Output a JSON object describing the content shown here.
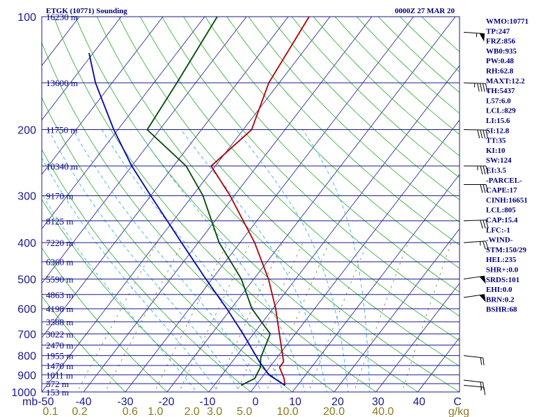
{
  "header": {
    "station": "ETGK (10771) Sounding",
    "time": "0000Z 27 MAR 20"
  },
  "colors": {
    "isobar": "#1a1a8c",
    "isotherm": "#1a1a8c",
    "dry_adiabat": "#2aa52a",
    "moist_adiabat": "#3bb0e0",
    "mixing_ratio": "#7a7a4a",
    "temperature": "#b00000",
    "dewpoint": "#004a00",
    "parcel": "#0000b0",
    "index_text": "#00007a",
    "wind_barb": "#000000",
    "mr_label": "#8a7a20"
  },
  "axis": {
    "pressure_ticks": [
      "100",
      "200",
      "300",
      "400",
      "500",
      "600",
      "700",
      "800",
      "900",
      "1000"
    ],
    "temperature_ticks": [
      "mb-50",
      "-40",
      "-30",
      "-20",
      "-10",
      "0",
      "10",
      "20",
      "30",
      "40",
      "C"
    ],
    "mixing_ratio_ticks": [
      "0.1",
      "0.2",
      "0.6",
      "1.0",
      "2.0",
      "3.0",
      "5.0",
      "10.0",
      "20.0",
      "40.0",
      "g/kg"
    ]
  },
  "height_labels": [
    {
      "p": 100,
      "label": "16230 m"
    },
    {
      "p": 150,
      "label": "13600 m"
    },
    {
      "p": 200,
      "label": "11750 m"
    },
    {
      "p": 250,
      "label": "10340 m"
    },
    {
      "p": 300,
      "label": "9170 m"
    },
    {
      "p": 350,
      "label": "8125 m"
    },
    {
      "p": 400,
      "label": "7220 m"
    },
    {
      "p": 450,
      "label": "6360 m"
    },
    {
      "p": 500,
      "label": "5590 m"
    },
    {
      "p": 550,
      "label": "4863 m"
    },
    {
      "p": 600,
      "label": "4198 m"
    },
    {
      "p": 650,
      "label": "3588 m"
    },
    {
      "p": 700,
      "label": "3022 m"
    },
    {
      "p": 750,
      "label": "2470 m"
    },
    {
      "p": 800,
      "label": "1955 m"
    },
    {
      "p": 850,
      "label": "1470 m"
    },
    {
      "p": 900,
      "label": "1011 m"
    },
    {
      "p": 950,
      "label": "572 m"
    },
    {
      "p": 1000,
      "label": "153 m"
    }
  ],
  "indices": [
    "WMO:10771",
    "TP:247",
    "FRZ:856",
    "WB0:935",
    "PW:0.48",
    "RH:62.8",
    "MAXT:12.2",
    "TH:5437",
    "L57:6.0",
    "LCL:829",
    "LI:15.6",
    "SI:12.8",
    "TT:35",
    "KI:10",
    "SW:124",
    "EI:3.5",
    "-PARCEL-",
    "CAPE:17",
    "CINH:16651",
    "LCL:805",
    "CAP:15.4",
    "LFC:-1",
    "-WIND-",
    "STM:150/29",
    "HEL:235",
    "SHR+:0.0",
    "SRDS:101",
    "EHI:0.0",
    "BRN:0.2",
    "BSHR:68"
  ],
  "chart_data": {
    "type": "line",
    "title": "ETGK (10771) Sounding",
    "subtitle": "0000Z 27 MAR 20",
    "xlabel": "C",
    "ylabel": "mb",
    "skew_deg_per_log10p": 69,
    "xlim": [
      -50,
      50
    ],
    "ylim": [
      1000,
      100
    ],
    "y_scale": "log",
    "grid": true,
    "series": [
      {
        "role": "temperature",
        "points": [
          {
            "p": 960,
            "t": 7.0
          },
          {
            "p": 920,
            "t": 5.5
          },
          {
            "p": 860,
            "t": 2.4
          },
          {
            "p": 830,
            "t": 2.3
          },
          {
            "p": 700,
            "t": -3.8
          },
          {
            "p": 600,
            "t": -9.3
          },
          {
            "p": 500,
            "t": -16.5
          },
          {
            "p": 400,
            "t": -26.5
          },
          {
            "p": 300,
            "t": -41.0
          },
          {
            "p": 250,
            "t": -51.0
          },
          {
            "p": 200,
            "t": -48.0
          },
          {
            "p": 150,
            "t": -52.5
          },
          {
            "p": 100,
            "t": -55.0
          }
        ]
      },
      {
        "role": "dewpoint",
        "points": [
          {
            "p": 960,
            "t": -3.5
          },
          {
            "p": 920,
            "t": -1.5
          },
          {
            "p": 860,
            "t": -2.2
          },
          {
            "p": 810,
            "t": -3.9
          },
          {
            "p": 700,
            "t": -6.0
          },
          {
            "p": 600,
            "t": -15.0
          },
          {
            "p": 500,
            "t": -23.0
          },
          {
            "p": 400,
            "t": -35.0
          },
          {
            "p": 300,
            "t": -47.5
          },
          {
            "p": 250,
            "t": -57.0
          },
          {
            "p": 200,
            "t": -73.0
          },
          {
            "p": 150,
            "t": -74.5
          },
          {
            "p": 100,
            "t": -77.0
          }
        ]
      },
      {
        "role": "parcel",
        "points": [
          {
            "p": 960,
            "t": 7.0
          },
          {
            "p": 900,
            "t": 1.2
          },
          {
            "p": 830,
            "t": -3.5
          },
          {
            "p": 700,
            "t": -12.5
          },
          {
            "p": 600,
            "t": -21.0
          },
          {
            "p": 500,
            "t": -31.5
          },
          {
            "p": 400,
            "t": -44.0
          },
          {
            "p": 300,
            "t": -60.0
          },
          {
            "p": 250,
            "t": -70.0
          },
          {
            "p": 200,
            "t": -81.0
          },
          {
            "p": 150,
            "t": -94.0
          },
          {
            "p": 125,
            "t": -101.0
          }
        ]
      }
    ],
    "winds": [
      {
        "p": 110,
        "dir": 290,
        "speed_kt": 55
      },
      {
        "p": 150,
        "dir": 280,
        "speed_kt": 45
      },
      {
        "p": 200,
        "dir": 275,
        "speed_kt": 40
      },
      {
        "p": 250,
        "dir": 270,
        "speed_kt": 35
      },
      {
        "p": 280,
        "dir": 270,
        "speed_kt": 30
      },
      {
        "p": 350,
        "dir": 265,
        "speed_kt": 30
      },
      {
        "p": 400,
        "dir": 260,
        "speed_kt": 25
      },
      {
        "p": 500,
        "dir": 250,
        "speed_kt": 50
      },
      {
        "p": 560,
        "dir": 250,
        "speed_kt": 50
      },
      {
        "p": 800,
        "dir": 300,
        "speed_kt": 20
      },
      {
        "p": 930,
        "dir": 300,
        "speed_kt": 20
      },
      {
        "p": 960,
        "dir": 295,
        "speed_kt": 15
      }
    ]
  }
}
